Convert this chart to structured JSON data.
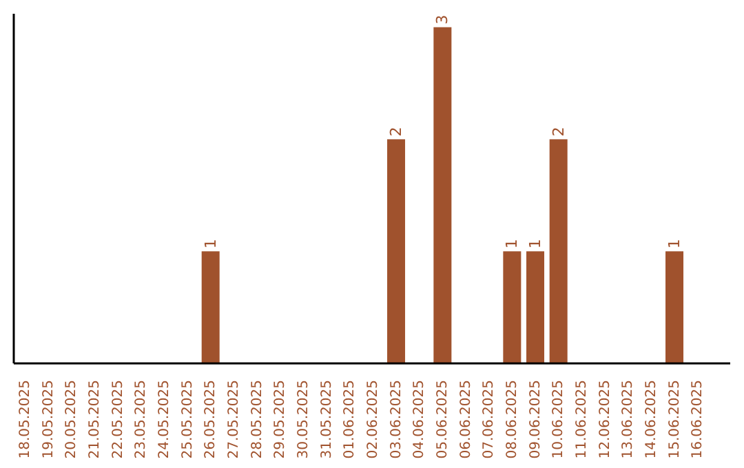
{
  "chart_data": {
    "type": "bar",
    "categories": [
      "18.05.2025",
      "19.05.2025",
      "20.05.2025",
      "21.05.2025",
      "22.05.2025",
      "23.05.2025",
      "24.05.2025",
      "25.05.2025",
      "26.05.2025",
      "27.05.2025",
      "28.05.2025",
      "29.05.2025",
      "30.05.2025",
      "31.05.2025",
      "01.06.2025",
      "02.06.2025",
      "03.06.2025",
      "04.06.2025",
      "05.06.2025",
      "06.06.2025",
      "07.06.2025",
      "08.06.2025",
      "09.06.2025",
      "10.06.2025",
      "11.06.2025",
      "12.06.2025",
      "13.06.2025",
      "14.06.2025",
      "15.06.2025",
      "16.06.2025"
    ],
    "values": [
      0,
      0,
      0,
      0,
      0,
      0,
      0,
      0,
      1,
      0,
      0,
      0,
      0,
      0,
      0,
      0,
      2,
      0,
      3,
      0,
      0,
      1,
      1,
      2,
      0,
      0,
      0,
      0,
      1,
      0
    ],
    "value_labels": [
      null,
      null,
      null,
      null,
      null,
      null,
      null,
      null,
      "1",
      null,
      null,
      null,
      null,
      null,
      null,
      null,
      "2",
      null,
      "3",
      null,
      null,
      "1",
      "1",
      "2",
      null,
      null,
      null,
      null,
      "1",
      null
    ],
    "color": "#a0522d",
    "tick_labels": "x",
    "grid": false,
    "legend": false
  }
}
